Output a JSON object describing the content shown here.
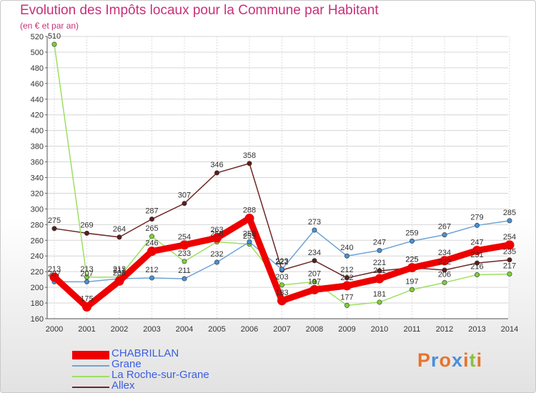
{
  "title": "Evolution des Impôts locaux pour la Commune par Habitant",
  "subtitle": "(en € et par an)",
  "logo": {
    "letters": [
      "P",
      "r",
      "o",
      "x",
      "i",
      "t",
      "i"
    ],
    "colors": [
      "#e8742a",
      "#4a90d9",
      "#e8742a",
      "#4a90d9",
      "#e8742a",
      "#8cbf3f",
      "#e8742a"
    ]
  },
  "chart_data": {
    "type": "line",
    "title": "Evolution des Impôts locaux pour la Commune par Habitant",
    "ylabel": "(en € et par an)",
    "xlabel": "",
    "ylim": [
      160,
      520
    ],
    "ytick_step": 20,
    "grid": true,
    "legend_position": "bottom-left",
    "categories": [
      "2000",
      "2001",
      "2002",
      "2003",
      "2004",
      "2005",
      "2006",
      "2007",
      "2008",
      "2009",
      "2010",
      "2011",
      "2012",
      "2013",
      "2014"
    ],
    "series": [
      {
        "name": "Allex",
        "color": "#6e2626",
        "marker": "#5a1e1e",
        "values": [
          275,
          269,
          264,
          287,
          307,
          346,
          358,
          222,
          234,
          212,
          221,
          225,
          222,
          231,
          235
        ],
        "labels": [
          "275",
          "269",
          "264",
          "287",
          "307",
          "346",
          "358",
          "222",
          "234",
          "212",
          "221",
          "225",
          "222",
          "231",
          "235"
        ]
      },
      {
        "name": "La Roche-sur-Grane",
        "color": "#9ce060",
        "marker": "#7ecf3a",
        "values": [
          510,
          213,
          213,
          265,
          233,
          258,
          255,
          203,
          207,
          177,
          181,
          197,
          206,
          216,
          217
        ],
        "labels": [
          "510",
          "213",
          "213",
          "265",
          "233",
          "258",
          "255",
          "203",
          "207",
          "177",
          "181",
          "197",
          "206",
          "216",
          "217"
        ]
      },
      {
        "name": "Grane",
        "color": "#6fa3d6",
        "marker": "#4a8fd4",
        "values": [
          207,
          207,
          211,
          212,
          211,
          232,
          258,
          223,
          273,
          240,
          247,
          259,
          267,
          279,
          285
        ],
        "labels": [
          "207",
          "207",
          "211",
          "212",
          "211",
          "232",
          "258",
          "223",
          "273",
          "240",
          "247",
          "259",
          "267",
          "279",
          "285"
        ]
      },
      {
        "name": "CHABRILLAN",
        "color": "#ee0000",
        "marker": "#ee0000",
        "values": [
          213,
          175,
          208,
          246,
          254,
          263,
          288,
          183,
          197,
          202,
          211,
          225,
          234,
          247,
          254
        ],
        "labels": [
          "213",
          "175",
          "208",
          "246",
          "254",
          "263",
          "288",
          "183",
          "197",
          "202",
          "211",
          "225",
          "234",
          "247",
          "254"
        ]
      }
    ]
  },
  "legend": [
    {
      "name": "CHABRILLAN",
      "color": "#ee0000",
      "thickness": 12
    },
    {
      "name": "Grane",
      "color": "#6fa3d6",
      "thickness": 2
    },
    {
      "name": "La Roche-sur-Grane",
      "color": "#9ce060",
      "thickness": 2
    },
    {
      "name": "Allex",
      "color": "#6e2626",
      "thickness": 2
    }
  ]
}
